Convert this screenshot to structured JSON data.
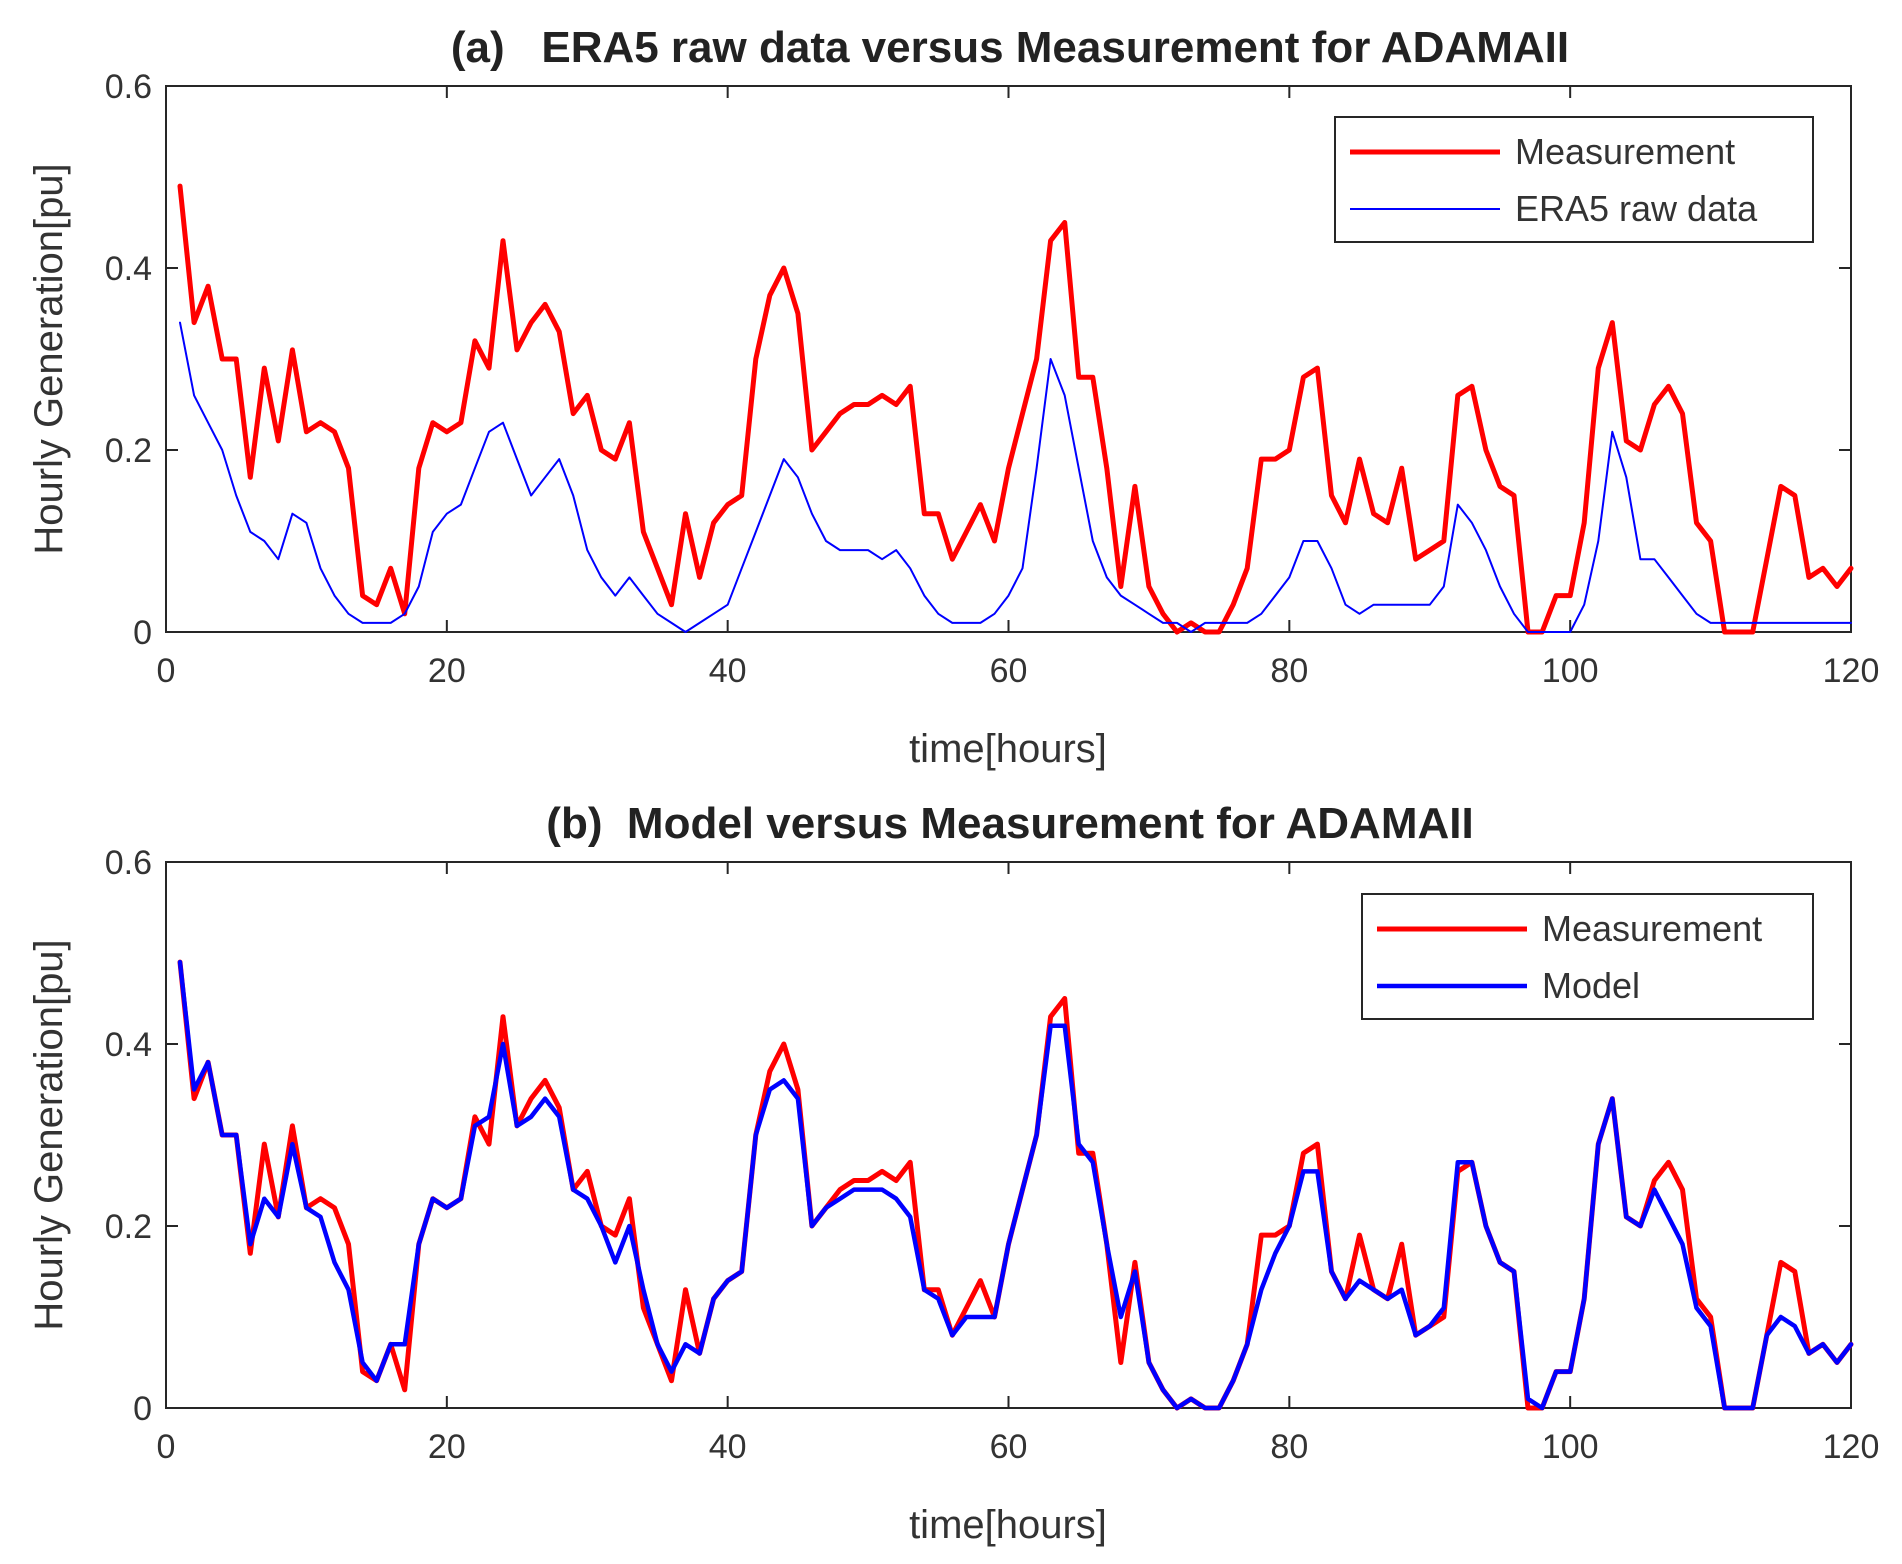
{
  "chart_data": [
    {
      "type": "line",
      "title": "(a)   ERA5 raw data versus Measurement for ADAMAII",
      "xlabel": "time[hours]",
      "ylabel": "Hourly Generation[pu]",
      "xlim": [
        0,
        120
      ],
      "ylim": [
        0,
        0.6
      ],
      "xticks": [
        0,
        20,
        40,
        60,
        80,
        100,
        120
      ],
      "yticks": [
        0,
        0.2,
        0.4,
        0.6
      ],
      "xtick_labels": [
        "0",
        "20",
        "40",
        "60",
        "80",
        "100",
        "120"
      ],
      "ytick_labels": [
        "0",
        "0.2",
        "0.4",
        "0.6"
      ],
      "legend_position": "top-right",
      "x": [
        1,
        2,
        3,
        4,
        5,
        6,
        7,
        8,
        9,
        10,
        11,
        12,
        13,
        14,
        15,
        16,
        17,
        18,
        19,
        20,
        21,
        22,
        23,
        24,
        25,
        26,
        27,
        28,
        29,
        30,
        31,
        32,
        33,
        34,
        35,
        36,
        37,
        38,
        39,
        40,
        41,
        42,
        43,
        44,
        45,
        46,
        47,
        48,
        49,
        50,
        51,
        52,
        53,
        54,
        55,
        56,
        57,
        58,
        59,
        60,
        61,
        62,
        63,
        64,
        65,
        66,
        67,
        68,
        69,
        70,
        71,
        72,
        73,
        74,
        75,
        76,
        77,
        78,
        79,
        80,
        81,
        82,
        83,
        84,
        85,
        86,
        87,
        88,
        89,
        90,
        91,
        92,
        93,
        94,
        95,
        96,
        97,
        98,
        99,
        100,
        101,
        102,
        103,
        104,
        105,
        106,
        107,
        108,
        109,
        110,
        111,
        112,
        113,
        114,
        115,
        116,
        117,
        118,
        119,
        120
      ],
      "series": [
        {
          "name": "Measurement",
          "color": "#ff0000",
          "values": [
            0.49,
            0.34,
            0.38,
            0.3,
            0.3,
            0.17,
            0.29,
            0.21,
            0.31,
            0.22,
            0.23,
            0.22,
            0.18,
            0.04,
            0.03,
            0.07,
            0.02,
            0.18,
            0.23,
            0.22,
            0.23,
            0.32,
            0.29,
            0.43,
            0.31,
            0.34,
            0.36,
            0.33,
            0.24,
            0.26,
            0.2,
            0.19,
            0.23,
            0.11,
            0.07,
            0.03,
            0.13,
            0.06,
            0.12,
            0.14,
            0.15,
            0.3,
            0.37,
            0.4,
            0.35,
            0.2,
            0.22,
            0.24,
            0.25,
            0.25,
            0.26,
            0.25,
            0.27,
            0.13,
            0.13,
            0.08,
            0.11,
            0.14,
            0.1,
            0.18,
            0.24,
            0.3,
            0.43,
            0.45,
            0.28,
            0.28,
            0.18,
            0.05,
            0.16,
            0.05,
            0.02,
            0.0,
            0.01,
            0.0,
            0.0,
            0.03,
            0.07,
            0.19,
            0.19,
            0.2,
            0.28,
            0.29,
            0.15,
            0.12,
            0.19,
            0.13,
            0.12,
            0.18,
            0.08,
            0.09,
            0.1,
            0.26,
            0.27,
            0.2,
            0.16,
            0.15,
            0.0,
            0.0,
            0.04,
            0.04,
            0.12,
            0.29,
            0.34,
            0.21,
            0.2,
            0.25,
            0.27,
            0.24,
            0.12,
            0.1,
            0.0,
            0.0,
            0.0,
            0.08,
            0.16,
            0.15,
            0.06,
            0.07,
            0.05,
            0.07
          ]
        },
        {
          "name": "ERA5 raw data",
          "color": "#0000ff",
          "values": [
            0.34,
            0.26,
            0.23,
            0.2,
            0.15,
            0.11,
            0.1,
            0.08,
            0.13,
            0.12,
            0.07,
            0.04,
            0.02,
            0.01,
            0.01,
            0.01,
            0.02,
            0.05,
            0.11,
            0.13,
            0.14,
            0.18,
            0.22,
            0.23,
            0.19,
            0.15,
            0.17,
            0.19,
            0.15,
            0.09,
            0.06,
            0.04,
            0.06,
            0.04,
            0.02,
            0.01,
            0.0,
            0.01,
            0.02,
            0.03,
            0.07,
            0.11,
            0.15,
            0.19,
            0.17,
            0.13,
            0.1,
            0.09,
            0.09,
            0.09,
            0.08,
            0.09,
            0.07,
            0.04,
            0.02,
            0.01,
            0.01,
            0.01,
            0.02,
            0.04,
            0.07,
            0.18,
            0.3,
            0.26,
            0.18,
            0.1,
            0.06,
            0.04,
            0.03,
            0.02,
            0.01,
            0.01,
            0.0,
            0.01,
            0.01,
            0.01,
            0.01,
            0.02,
            0.04,
            0.06,
            0.1,
            0.1,
            0.07,
            0.03,
            0.02,
            0.03,
            0.03,
            0.03,
            0.03,
            0.03,
            0.05,
            0.14,
            0.12,
            0.09,
            0.05,
            0.02,
            0.0,
            0.0,
            0.0,
            0.0,
            0.03,
            0.1,
            0.22,
            0.17,
            0.08,
            0.08,
            0.06,
            0.04,
            0.02,
            0.01,
            0.01,
            0.01,
            0.01,
            0.01,
            0.01,
            0.01,
            0.01,
            0.01,
            0.01,
            0.01
          ]
        }
      ]
    },
    {
      "type": "line",
      "title": "(b)  Model versus Measurement for ADAMAII",
      "xlabel": "time[hours]",
      "ylabel": "Hourly Generation[pu]",
      "xlim": [
        0,
        120
      ],
      "ylim": [
        0,
        0.6
      ],
      "xticks": [
        0,
        20,
        40,
        60,
        80,
        100,
        120
      ],
      "yticks": [
        0,
        0.2,
        0.4,
        0.6
      ],
      "xtick_labels": [
        "0",
        "20",
        "40",
        "60",
        "80",
        "100",
        "120"
      ],
      "ytick_labels": [
        "0",
        "0.2",
        "0.4",
        "0.6"
      ],
      "legend_position": "top-right",
      "x": [
        1,
        2,
        3,
        4,
        5,
        6,
        7,
        8,
        9,
        10,
        11,
        12,
        13,
        14,
        15,
        16,
        17,
        18,
        19,
        20,
        21,
        22,
        23,
        24,
        25,
        26,
        27,
        28,
        29,
        30,
        31,
        32,
        33,
        34,
        35,
        36,
        37,
        38,
        39,
        40,
        41,
        42,
        43,
        44,
        45,
        46,
        47,
        48,
        49,
        50,
        51,
        52,
        53,
        54,
        55,
        56,
        57,
        58,
        59,
        60,
        61,
        62,
        63,
        64,
        65,
        66,
        67,
        68,
        69,
        70,
        71,
        72,
        73,
        74,
        75,
        76,
        77,
        78,
        79,
        80,
        81,
        82,
        83,
        84,
        85,
        86,
        87,
        88,
        89,
        90,
        91,
        92,
        93,
        94,
        95,
        96,
        97,
        98,
        99,
        100,
        101,
        102,
        103,
        104,
        105,
        106,
        107,
        108,
        109,
        110,
        111,
        112,
        113,
        114,
        115,
        116,
        117,
        118,
        119,
        120
      ],
      "series": [
        {
          "name": "Measurement",
          "color": "#ff0000",
          "values": [
            0.49,
            0.34,
            0.38,
            0.3,
            0.3,
            0.17,
            0.29,
            0.21,
            0.31,
            0.22,
            0.23,
            0.22,
            0.18,
            0.04,
            0.03,
            0.07,
            0.02,
            0.18,
            0.23,
            0.22,
            0.23,
            0.32,
            0.29,
            0.43,
            0.31,
            0.34,
            0.36,
            0.33,
            0.24,
            0.26,
            0.2,
            0.19,
            0.23,
            0.11,
            0.07,
            0.03,
            0.13,
            0.06,
            0.12,
            0.14,
            0.15,
            0.3,
            0.37,
            0.4,
            0.35,
            0.2,
            0.22,
            0.24,
            0.25,
            0.25,
            0.26,
            0.25,
            0.27,
            0.13,
            0.13,
            0.08,
            0.11,
            0.14,
            0.1,
            0.18,
            0.24,
            0.3,
            0.43,
            0.45,
            0.28,
            0.28,
            0.18,
            0.05,
            0.16,
            0.05,
            0.02,
            0.0,
            0.01,
            0.0,
            0.0,
            0.03,
            0.07,
            0.19,
            0.19,
            0.2,
            0.28,
            0.29,
            0.15,
            0.12,
            0.19,
            0.13,
            0.12,
            0.18,
            0.08,
            0.09,
            0.1,
            0.26,
            0.27,
            0.2,
            0.16,
            0.15,
            0.0,
            0.0,
            0.04,
            0.04,
            0.12,
            0.29,
            0.34,
            0.21,
            0.2,
            0.25,
            0.27,
            0.24,
            0.12,
            0.1,
            0.0,
            0.0,
            0.0,
            0.08,
            0.16,
            0.15,
            0.06,
            0.07,
            0.05,
            0.07
          ]
        },
        {
          "name": "Model",
          "color": "#0000ff",
          "values": [
            0.49,
            0.35,
            0.38,
            0.3,
            0.3,
            0.18,
            0.23,
            0.21,
            0.29,
            0.22,
            0.21,
            0.16,
            0.13,
            0.05,
            0.03,
            0.07,
            0.07,
            0.18,
            0.23,
            0.22,
            0.23,
            0.31,
            0.32,
            0.4,
            0.31,
            0.32,
            0.34,
            0.32,
            0.24,
            0.23,
            0.2,
            0.16,
            0.2,
            0.13,
            0.07,
            0.04,
            0.07,
            0.06,
            0.12,
            0.14,
            0.15,
            0.3,
            0.35,
            0.36,
            0.34,
            0.2,
            0.22,
            0.23,
            0.24,
            0.24,
            0.24,
            0.23,
            0.21,
            0.13,
            0.12,
            0.08,
            0.1,
            0.1,
            0.1,
            0.18,
            0.24,
            0.3,
            0.42,
            0.42,
            0.29,
            0.27,
            0.18,
            0.1,
            0.15,
            0.05,
            0.02,
            0.0,
            0.01,
            0.0,
            0.0,
            0.03,
            0.07,
            0.13,
            0.17,
            0.2,
            0.26,
            0.26,
            0.15,
            0.12,
            0.14,
            0.13,
            0.12,
            0.13,
            0.08,
            0.09,
            0.11,
            0.27,
            0.27,
            0.2,
            0.16,
            0.15,
            0.01,
            0.0,
            0.04,
            0.04,
            0.12,
            0.29,
            0.34,
            0.21,
            0.2,
            0.24,
            0.21,
            0.18,
            0.11,
            0.09,
            0.0,
            0.0,
            0.0,
            0.08,
            0.1,
            0.09,
            0.06,
            0.07,
            0.05,
            0.07
          ]
        }
      ]
    }
  ]
}
